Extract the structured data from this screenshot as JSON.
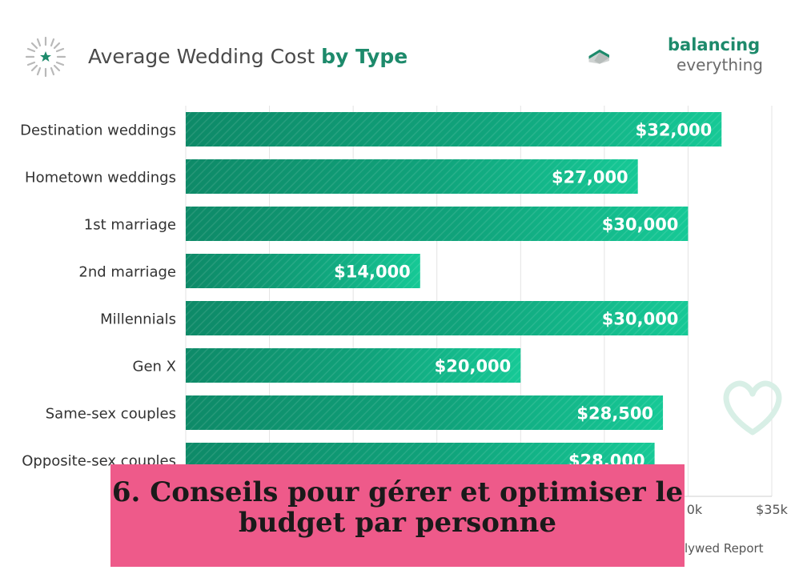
{
  "header": {
    "title_plain": "Average Wedding Cost ",
    "title_bold": "by Type",
    "brand_line1": "balancing",
    "brand_line2": "everything"
  },
  "chart_data": {
    "type": "bar",
    "orientation": "horizontal",
    "categories": [
      "Destination weddings",
      "Hometown weddings",
      "1st marriage",
      "2nd marriage",
      "Millennials",
      "Gen X",
      "Same-sex couples",
      "Opposite-sex couples"
    ],
    "values": [
      32000,
      27000,
      30000,
      14000,
      30000,
      20000,
      28500,
      28000
    ],
    "value_labels": [
      "$32,000",
      "$27,000",
      "$30,000",
      "$14,000",
      "$30,000",
      "$20,000",
      "$28,500",
      "$28,000"
    ],
    "xlim": [
      0,
      35000
    ],
    "visible_ticks": [
      {
        "value": 30000,
        "label": "0k"
      },
      {
        "value": 35000,
        "label": "$35k"
      }
    ],
    "grid": true,
    "bar_color": "#13b88a",
    "bar_color_dark": "#0e8a68"
  },
  "overlay": {
    "heading": "6. Conseils pour gérer et optimiser le budget par personne"
  },
  "source_fragment": "lywed Report"
}
